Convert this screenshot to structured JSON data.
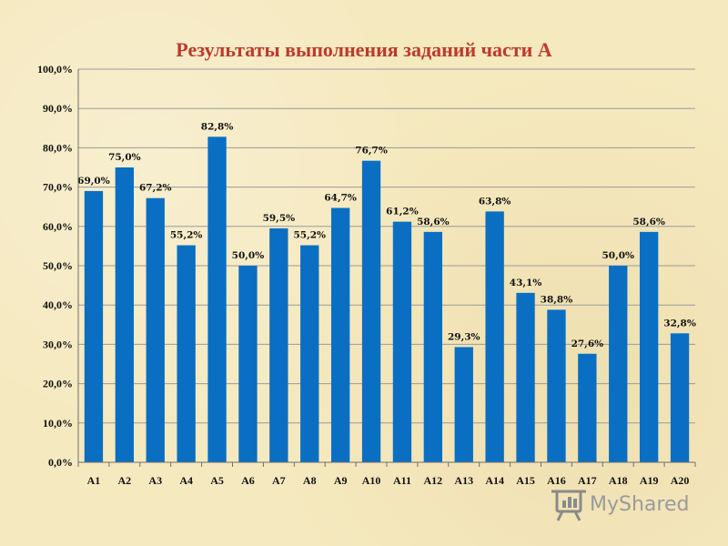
{
  "chart_data": {
    "type": "bar",
    "title": "Результаты выполнения  заданий части А",
    "categories": [
      "А1",
      "А2",
      "А3",
      "А4",
      "А5",
      "А6",
      "А7",
      "А8",
      "А9",
      "А10",
      "А11",
      "А12",
      "А13",
      "А14",
      "А15",
      "А16",
      "А17",
      "А18",
      "А19",
      "А20"
    ],
    "values": [
      69.0,
      75.0,
      67.2,
      55.2,
      82.8,
      50.0,
      59.5,
      55.2,
      64.7,
      76.7,
      61.2,
      58.6,
      29.3,
      63.8,
      43.1,
      38.8,
      27.6,
      50.0,
      58.6,
      32.8
    ],
    "value_labels": [
      "69,0%",
      "75,0%",
      "67,2%",
      "55,2%",
      "82,8%",
      "50,0%",
      "59,5%",
      "55,2%",
      "64,7%",
      "76,7%",
      "61,2%",
      "58,6%",
      "29,3%",
      "63,8%",
      "43,1%",
      "38,8%",
      "27,6%",
      "50,0%",
      "58,6%",
      "32,8%"
    ],
    "y_ticks": [
      0,
      10,
      20,
      30,
      40,
      50,
      60,
      70,
      80,
      90,
      100
    ],
    "y_tick_labels": [
      "0,0%",
      "10,0%",
      "20,0%",
      "30,0%",
      "40,0%",
      "50,0%",
      "60,0%",
      "70,0%",
      "80,0%",
      "90,0%",
      "100,0%"
    ],
    "ylim": [
      0,
      100
    ],
    "grid": true,
    "bar_color": "#0a6fc2",
    "grid_color": "#9a9a9a",
    "title_color": "#c0392b"
  },
  "watermark": {
    "text": "MyShared",
    "icon": "presentation-board-icon"
  }
}
